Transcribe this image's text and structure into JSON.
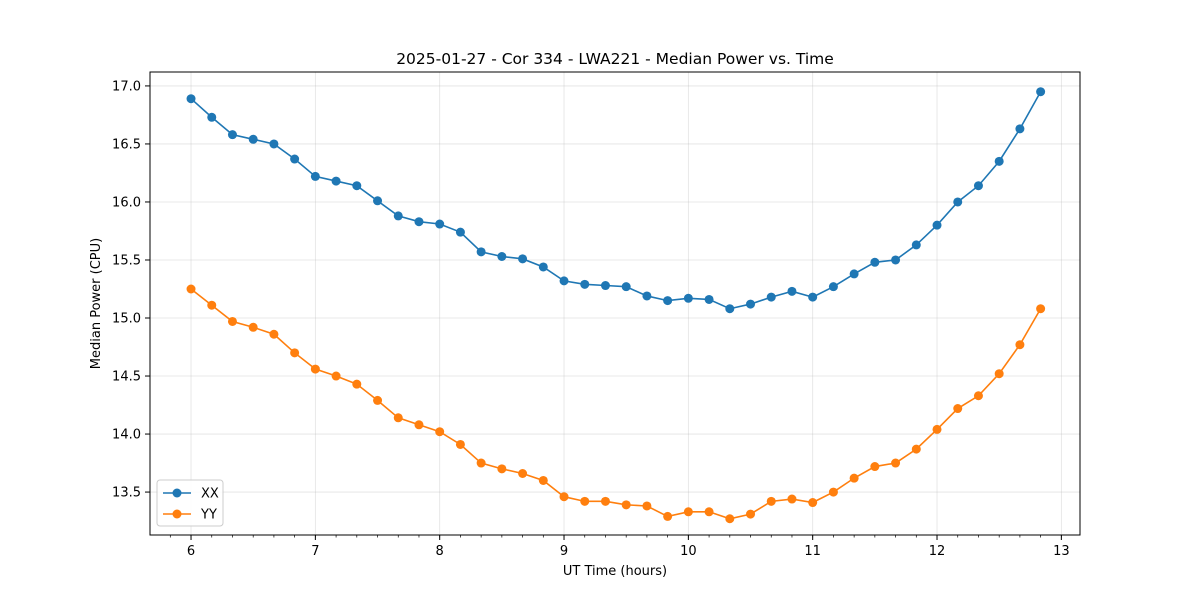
{
  "chart_data": {
    "type": "line",
    "title": "2025-01-27 - Cor 334 - LWA221 - Median Power vs. Time",
    "xlabel": "UT Time (hours)",
    "ylabel": "Median Power (CPU)",
    "xlim": [
      5.67,
      13.15
    ],
    "ylim": [
      13.13,
      17.12
    ],
    "xticks": [
      6,
      7,
      8,
      9,
      10,
      11,
      12,
      13
    ],
    "xtick_labels": [
      "6",
      "7",
      "8",
      "9",
      "10",
      "11",
      "12",
      "13"
    ],
    "yticks": [
      13.5,
      14.0,
      14.5,
      15.0,
      15.5,
      16.0,
      16.5,
      17.0
    ],
    "ytick_labels": [
      "13.5",
      "14.0",
      "14.5",
      "15.0",
      "15.5",
      "16.0",
      "16.5",
      "17.0"
    ],
    "grid": true,
    "legend_position": "lower-left",
    "x": [
      6.0,
      6.1667,
      6.3333,
      6.5,
      6.6667,
      6.8333,
      7.0,
      7.1667,
      7.3333,
      7.5,
      7.6667,
      7.8333,
      8.0,
      8.1667,
      8.3333,
      8.5,
      8.6667,
      8.8333,
      9.0,
      9.1667,
      9.3333,
      9.5,
      9.6667,
      9.8333,
      10.0,
      10.1667,
      10.3333,
      10.5,
      10.6667,
      10.8333,
      11.0,
      11.1667,
      11.3333,
      11.5,
      11.6667,
      11.8333,
      12.0,
      12.1667,
      12.3333,
      12.5,
      12.6667,
      12.8333
    ],
    "series": [
      {
        "name": "XX",
        "color": "#1f77b4",
        "values": [
          16.89,
          16.73,
          16.58,
          16.54,
          16.5,
          16.37,
          16.22,
          16.18,
          16.14,
          16.01,
          15.88,
          15.83,
          15.81,
          15.74,
          15.57,
          15.53,
          15.51,
          15.44,
          15.32,
          15.29,
          15.28,
          15.27,
          15.19,
          15.15,
          15.17,
          15.16,
          15.08,
          15.12,
          15.18,
          15.23,
          15.18,
          15.27,
          15.38,
          15.48,
          15.5,
          15.63,
          15.8,
          16.0,
          16.14,
          16.35,
          16.63,
          16.95
        ]
      },
      {
        "name": "YY",
        "color": "#ff7f0e",
        "values": [
          15.25,
          15.11,
          14.97,
          14.92,
          14.86,
          14.7,
          14.56,
          14.5,
          14.43,
          14.29,
          14.14,
          14.08,
          14.02,
          13.91,
          13.75,
          13.7,
          13.66,
          13.6,
          13.46,
          13.42,
          13.42,
          13.39,
          13.38,
          13.29,
          13.33,
          13.33,
          13.27,
          13.31,
          13.42,
          13.44,
          13.41,
          13.5,
          13.62,
          13.72,
          13.75,
          13.87,
          14.04,
          14.22,
          14.33,
          14.52,
          14.77,
          15.08
        ]
      }
    ]
  }
}
